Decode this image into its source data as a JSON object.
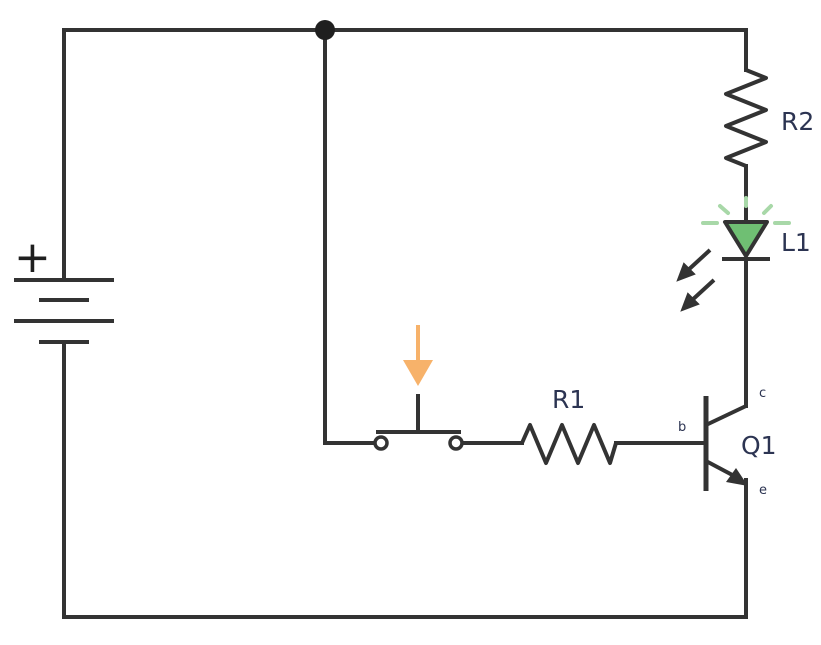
{
  "components": {
    "battery": {
      "polarity_symbol": "+"
    },
    "resistor_r2": {
      "label": "R2"
    },
    "led_l1": {
      "label": "L1",
      "glow_color": "#a8d8a8",
      "fill_color": "#6fbf73"
    },
    "resistor_r1": {
      "label": "R1"
    },
    "pushbutton": {
      "arrow_color": "#f7b26a"
    },
    "transistor_q1": {
      "label": "Q1",
      "base_label": "b",
      "collector_label": "c",
      "emitter_label": "e"
    }
  },
  "colors": {
    "wire": "#333333",
    "label": "#2c3452"
  }
}
